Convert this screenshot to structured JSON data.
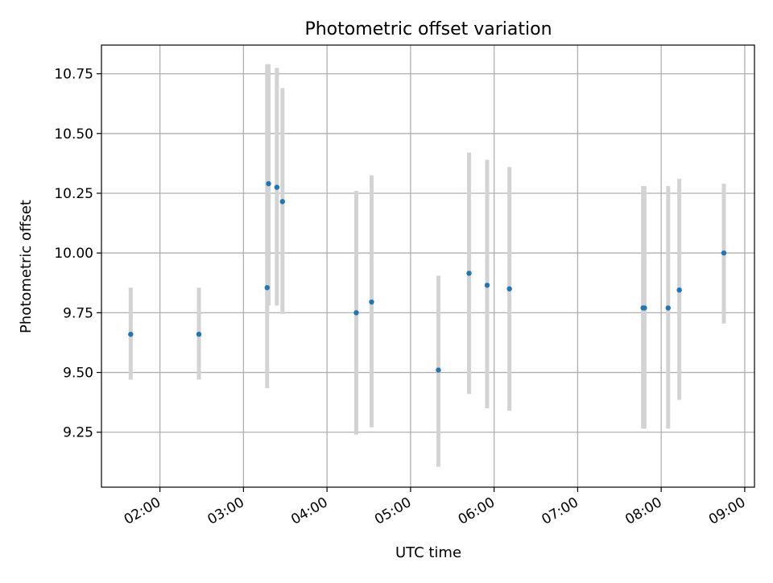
{
  "chart_data": {
    "type": "scatter",
    "title": "Photometric offset variation",
    "xlabel": "UTC time",
    "ylabel": "Photometric offset",
    "x_axis_kind": "time",
    "xlim": [
      "01:18",
      "09:07"
    ],
    "ylim": [
      9.02,
      10.87
    ],
    "x_ticks": [
      "02:00",
      "03:00",
      "04:00",
      "05:00",
      "06:00",
      "07:00",
      "08:00",
      "09:00"
    ],
    "y_ticks": [
      "9.25",
      "9.50",
      "9.75",
      "10.00",
      "10.25",
      "10.50",
      "10.75"
    ],
    "grid": true,
    "colors": {
      "point": "#1f77b4",
      "errorbar": "#d3d3d3",
      "grid": "#b0b0b0"
    },
    "series": [
      {
        "points": [
          {
            "x": "01:39",
            "y": 9.66,
            "ylow": 9.47,
            "yhigh": 9.855
          },
          {
            "x": "02:28",
            "y": 9.66,
            "ylow": 9.47,
            "yhigh": 9.855
          },
          {
            "x": "03:17",
            "y": 9.855,
            "ylow": 9.435,
            "yhigh": 10.79
          },
          {
            "x": "03:18",
            "y": 10.29,
            "ylow": 9.78,
            "yhigh": 10.79
          },
          {
            "x": "03:24",
            "y": 10.275,
            "ylow": 9.78,
            "yhigh": 10.775
          },
          {
            "x": "03:28",
            "y": 10.215,
            "ylow": 9.745,
            "yhigh": 10.69
          },
          {
            "x": "04:21",
            "y": 9.75,
            "ylow": 9.24,
            "yhigh": 10.26
          },
          {
            "x": "04:32",
            "y": 9.795,
            "ylow": 9.27,
            "yhigh": 10.325
          },
          {
            "x": "05:20",
            "y": 9.51,
            "ylow": 9.105,
            "yhigh": 9.905
          },
          {
            "x": "05:42",
            "y": 9.915,
            "ylow": 9.41,
            "yhigh": 10.42
          },
          {
            "x": "05:55",
            "y": 9.865,
            "ylow": 9.35,
            "yhigh": 10.39
          },
          {
            "x": "06:11",
            "y": 9.85,
            "ylow": 9.34,
            "yhigh": 10.36
          },
          {
            "x": "07:47",
            "y": 9.77,
            "ylow": 9.265,
            "yhigh": 10.28
          },
          {
            "x": "07:48",
            "y": 9.77,
            "ylow": 9.265,
            "yhigh": 10.28
          },
          {
            "x": "08:05",
            "y": 9.77,
            "ylow": 9.265,
            "yhigh": 10.28
          },
          {
            "x": "08:13",
            "y": 9.845,
            "ylow": 9.385,
            "yhigh": 10.31
          },
          {
            "x": "08:45",
            "y": 10.0,
            "ylow": 9.705,
            "yhigh": 10.29
          }
        ]
      }
    ]
  }
}
